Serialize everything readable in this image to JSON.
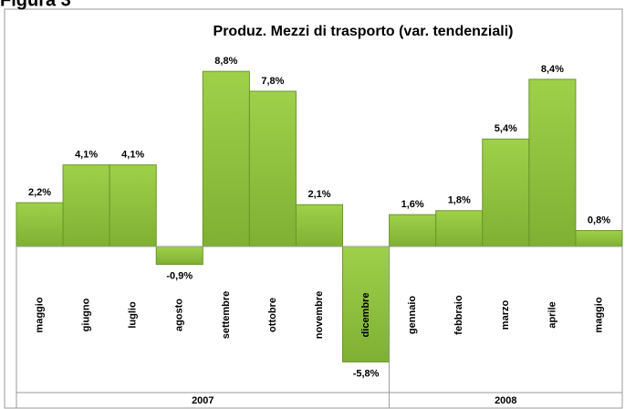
{
  "figure_label": "Figura 3",
  "chart_data": {
    "type": "bar",
    "title": "Produz. Mezzi di trasporto (var. tendenziali)",
    "categories": [
      "maggio",
      "giugno",
      "luglio",
      "agosto",
      "settembre",
      "ottobre",
      "novembre",
      "dicembre",
      "gennaio",
      "febbraio",
      "marzo",
      "aprile",
      "maggio"
    ],
    "values": [
      2.2,
      4.1,
      4.1,
      -0.9,
      8.8,
      7.8,
      2.1,
      -5.8,
      1.6,
      1.8,
      5.4,
      8.4,
      0.8
    ],
    "value_labels": [
      "2,2%",
      "4,1%",
      "4,1%",
      "-0,9%",
      "8,8%",
      "7,8%",
      "2,1%",
      "-5,8%",
      "1,6%",
      "1,8%",
      "5,4%",
      "8,4%",
      "0,8%"
    ],
    "groups": [
      {
        "label": "2007",
        "size": 8
      },
      {
        "label": "2008",
        "size": 5
      }
    ],
    "color": "#8dc03c"
  }
}
